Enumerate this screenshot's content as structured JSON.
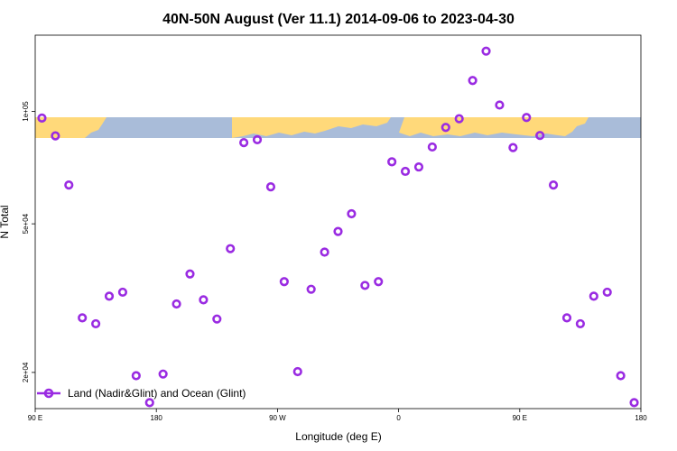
{
  "chart_data": {
    "type": "scatter",
    "title": "40N-50N August (Ver 11.1)   2014-09-06 to 2023-04-30",
    "xlabel": "Longitude (deg E)",
    "ylabel": "N Total",
    "x_ticks": [
      {
        "value": 90,
        "label": "90 E"
      },
      {
        "value": 180,
        "label": "180"
      },
      {
        "value": 270,
        "label": "90 W"
      },
      {
        "value": 360,
        "label": "0"
      },
      {
        "value": 450,
        "label": "90 E"
      },
      {
        "value": 540,
        "label": "180"
      }
    ],
    "y_ticks": [
      {
        "value": 20000,
        "label": "2e+04"
      },
      {
        "value": 50000,
        "label": "5e+04"
      },
      {
        "value": 100000,
        "label": "1e+05"
      }
    ],
    "xlim": [
      90,
      540
    ],
    "ylim": [
      16000,
      160000
    ],
    "y_scale": "log",
    "grid": false,
    "legend_position": "bottom-left",
    "map_strip": {
      "present": true,
      "land_color": "#ffd97a",
      "ocean_color": "#a9bcd9"
    },
    "series": [
      {
        "name": "Land (Nadir&Glint) and Ocean (Glint)",
        "color": "#9a2be2",
        "marker": "open-circle",
        "points": [
          [
            95,
            96000
          ],
          [
            105,
            86000
          ],
          [
            115,
            63500
          ],
          [
            125,
            28000
          ],
          [
            135,
            27000
          ],
          [
            145,
            32000
          ],
          [
            155,
            32800
          ],
          [
            165,
            19600
          ],
          [
            175,
            16600
          ],
          [
            185,
            19800
          ],
          [
            195,
            30500
          ],
          [
            205,
            36700
          ],
          [
            215,
            31300
          ],
          [
            225,
            27800
          ],
          [
            235,
            42900
          ],
          [
            245,
            82500
          ],
          [
            255,
            84000
          ],
          [
            265,
            62800
          ],
          [
            275,
            35000
          ],
          [
            285,
            20100
          ],
          [
            295,
            33400
          ],
          [
            305,
            42000
          ],
          [
            315,
            47700
          ],
          [
            325,
            53200
          ],
          [
            335,
            34200
          ],
          [
            345,
            35000
          ],
          [
            355,
            73300
          ],
          [
            365,
            69100
          ],
          [
            375,
            71000
          ],
          [
            385,
            80300
          ],
          [
            395,
            90600
          ],
          [
            405,
            95600
          ],
          [
            415,
            121000
          ],
          [
            425,
            145000
          ],
          [
            435,
            104000
          ],
          [
            445,
            80000
          ],
          [
            455,
            96300
          ],
          [
            465,
            86200
          ],
          [
            475,
            63500
          ],
          [
            485,
            28000
          ],
          [
            495,
            27000
          ],
          [
            505,
            32000
          ],
          [
            515,
            32800
          ],
          [
            525,
            19600
          ],
          [
            535,
            16600
          ]
        ]
      }
    ]
  }
}
